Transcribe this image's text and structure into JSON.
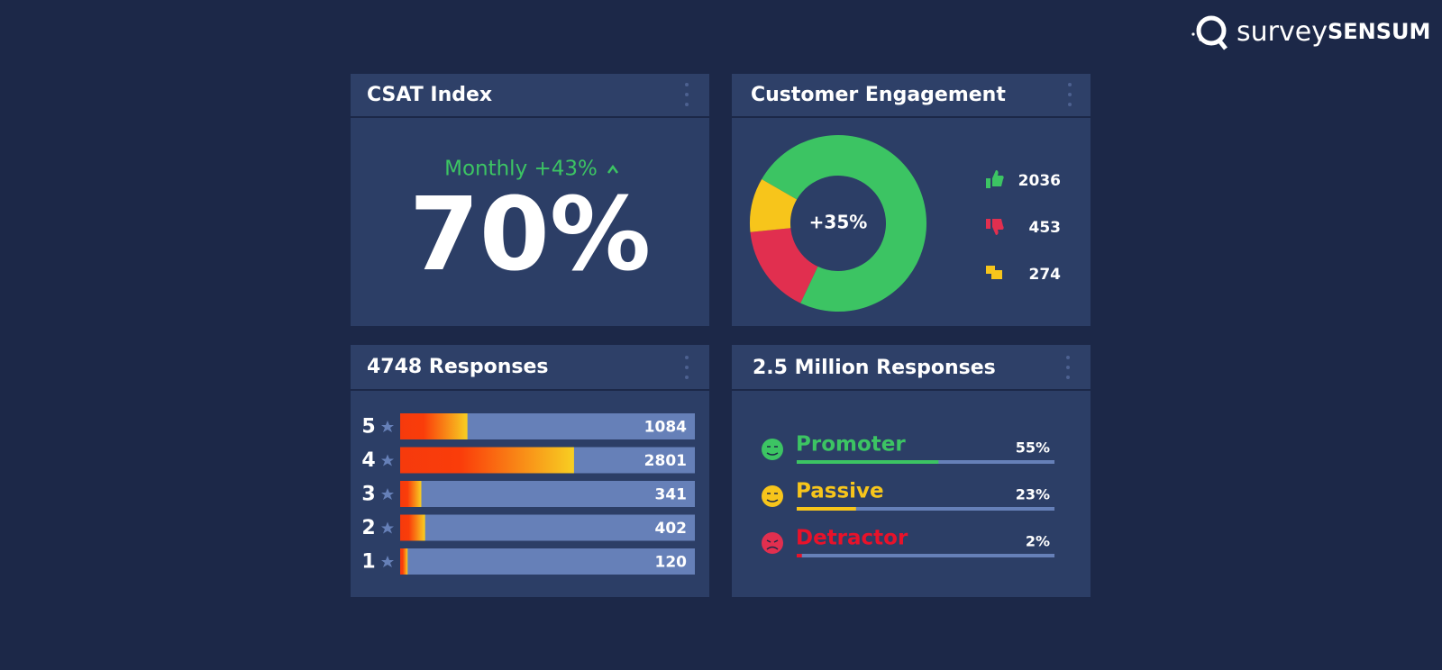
{
  "logo": {
    "light": "survey",
    "bold": "SENSUM"
  },
  "csat": {
    "title": "CSAT Index",
    "trend": "Monthly +43%",
    "value": "70%"
  },
  "engagement": {
    "title": "Customer Engagement",
    "type": "pie",
    "center_label": "+35%",
    "values": [
      2036,
      453,
      274
    ],
    "colors": [
      "#3cc463",
      "#e12f4f",
      "#f7c51b"
    ]
  },
  "ratings": {
    "title": "4748 Responses",
    "type": "bar",
    "categories": [
      "5",
      "4",
      "3",
      "2",
      "1"
    ],
    "values": [
      1084,
      2801,
      341,
      402,
      120
    ]
  },
  "nps": {
    "title": "2.5 Million Responses",
    "type": "bar",
    "categories": [
      "Promoter",
      "Passive",
      "Detractor"
    ],
    "values": [
      55,
      23,
      2
    ],
    "value_labels": [
      "55%",
      "23%",
      "2%"
    ],
    "colors": [
      "#3cc463",
      "#f7c51b",
      "#e8122a"
    ]
  }
}
